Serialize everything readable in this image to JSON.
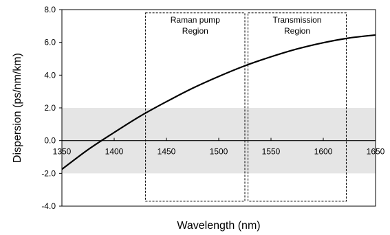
{
  "chart_data": {
    "type": "line",
    "title": "",
    "xlabel": "Wavelength (nm)",
    "ylabel": "Dispersion (ps/nm/km)",
    "xlim": [
      1350,
      1650
    ],
    "ylim": [
      -4.0,
      8.0
    ],
    "x_ticks": [
      1350,
      1400,
      1450,
      1500,
      1550,
      1600,
      1650
    ],
    "x_tick_labels": [
      "1350",
      "1400",
      "1450",
      "1500",
      "1550",
      "1600",
      "1650"
    ],
    "y_ticks": [
      -4,
      -2,
      0,
      2,
      4,
      6,
      8
    ],
    "y_tick_labels": [
      "-4.0",
      "-2.0",
      "0.0",
      "2.0",
      "4.0",
      "6.0",
      "8.0"
    ],
    "grid": false,
    "shaded_band": {
      "y_from": -2.0,
      "y_to": 2.0,
      "color": "#e5e5e5"
    },
    "regions": [
      {
        "label_lines": [
          "Raman pump",
          "Region"
        ],
        "x_from": 1430,
        "x_to": 1525,
        "y_from": -3.7,
        "y_to": 7.8
      },
      {
        "label_lines": [
          "Transmission",
          "Region"
        ],
        "x_from": 1528,
        "x_to": 1622,
        "y_from": -3.7,
        "y_to": 7.8
      }
    ],
    "series": [
      {
        "x": [
          1350,
          1375,
          1400,
          1425,
          1450,
          1475,
          1500,
          1525,
          1550,
          1575,
          1600,
          1625,
          1650
        ],
        "y": [
          -1.75,
          -0.55,
          0.5,
          1.5,
          2.38,
          3.2,
          3.92,
          4.57,
          5.12,
          5.6,
          5.98,
          6.27,
          6.45
        ],
        "color": "#000000"
      }
    ]
  }
}
